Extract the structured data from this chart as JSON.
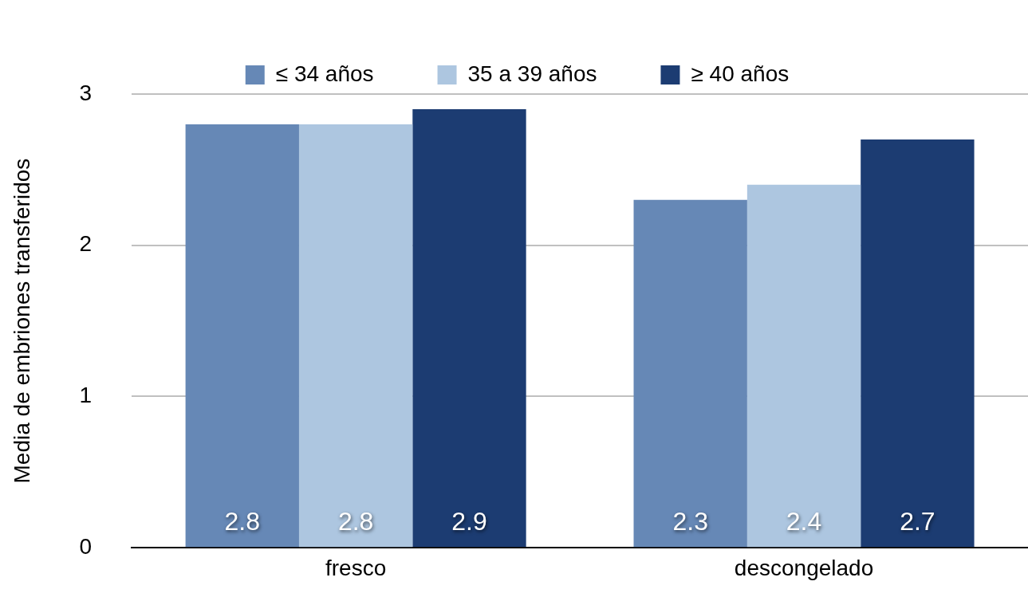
{
  "chart_data": {
    "type": "bar",
    "ylabel": "Media de embriones transferidos",
    "categories": [
      "fresco",
      "descongelado"
    ],
    "series": [
      {
        "name": "≤ 34 años",
        "color": "#6688b6",
        "values": [
          2.8,
          2.3
        ]
      },
      {
        "name": "35 a 39 años",
        "color": "#adc6e0",
        "values": [
          2.8,
          2.4
        ]
      },
      {
        "name": "≥ 40 años",
        "color": "#1c3c72",
        "values": [
          2.9,
          2.7
        ]
      }
    ],
    "ylim": [
      0,
      3
    ],
    "yticks": [
      0,
      1,
      2,
      3
    ],
    "grid": "y",
    "legend": "top",
    "data_labels": true
  }
}
